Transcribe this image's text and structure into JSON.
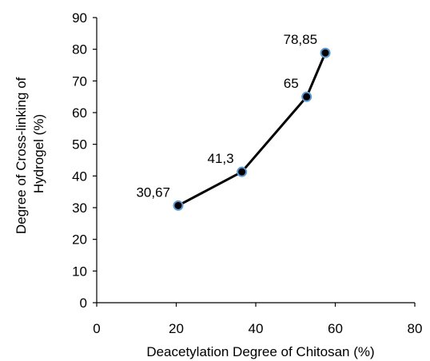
{
  "colors": {
    "line": "#000000",
    "marker_fill": "#000000",
    "marker_edge": "#5b9bd5",
    "axis": "#000000"
  },
  "chart_data": {
    "type": "line",
    "title": "",
    "xlabel": "Deacetylation Degree of Chitosan (%)",
    "ylabel_lines": [
      "Degree of Cross-linking of",
      "Hydrogel (%)"
    ],
    "xlim": [
      0,
      80
    ],
    "ylim": [
      0,
      90
    ],
    "x_ticks": [
      0,
      20,
      40,
      60,
      80
    ],
    "y_ticks": [
      0,
      10,
      20,
      30,
      40,
      50,
      60,
      70,
      80,
      90
    ],
    "grid": false,
    "legend": "none",
    "series": [
      {
        "x": [
          20.5,
          36.5,
          52.8,
          57.5
        ],
        "y": [
          30.67,
          41.3,
          65,
          78.85
        ],
        "labels": [
          "30,67",
          "41,3",
          "65",
          "78,85"
        ]
      }
    ]
  }
}
